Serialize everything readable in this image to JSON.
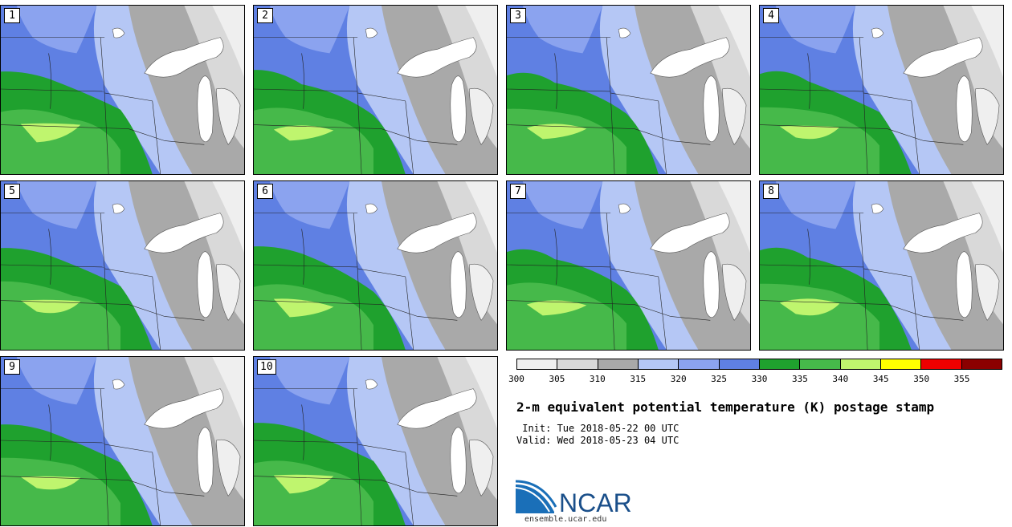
{
  "panels": [
    {
      "label": "1"
    },
    {
      "label": "2"
    },
    {
      "label": "3"
    },
    {
      "label": "4"
    },
    {
      "label": "5"
    },
    {
      "label": "6"
    },
    {
      "label": "7"
    },
    {
      "label": "8"
    },
    {
      "label": "9"
    },
    {
      "label": "10"
    }
  ],
  "colorbar": {
    "ticks": [
      "300",
      "305",
      "310",
      "315",
      "320",
      "325",
      "330",
      "335",
      "340",
      "345",
      "350",
      "355"
    ],
    "colors": [
      "#efefef",
      "#d9d9d9",
      "#a9a9a9",
      "#b5c7f5",
      "#8ba3ef",
      "#5f80e3",
      "#1fa12e",
      "#46b94a",
      "#bff56e",
      "#ffff00",
      "#ee0000",
      "#8b0000"
    ]
  },
  "title": "2-m equivalent potential temperature (K) postage stamp",
  "init": " Init: Tue 2018-05-22 00 UTC",
  "valid": "Valid: Wed 2018-05-23 04 UTC",
  "logo": {
    "text": "NCAR",
    "url": "ensemble.ucar.edu",
    "brand_color": "#1a4f8a"
  }
}
